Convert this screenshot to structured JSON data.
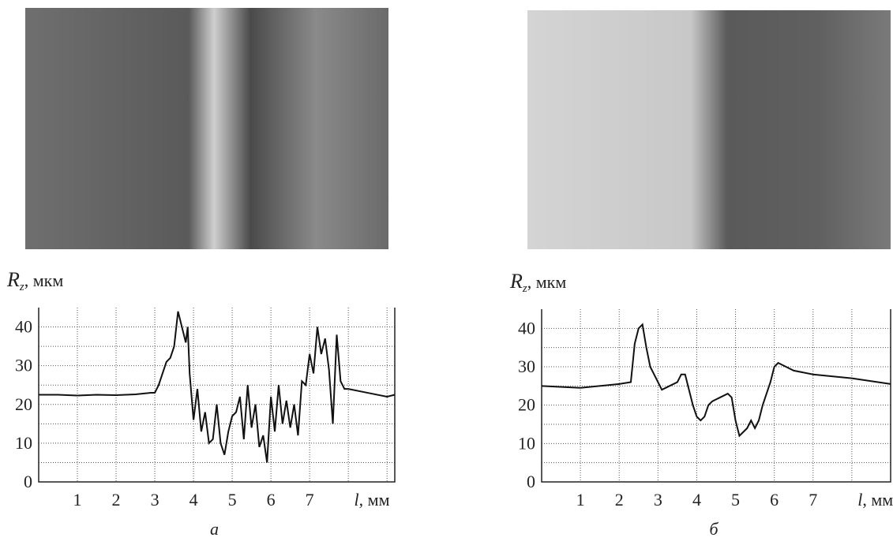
{
  "chart_data": [
    {
      "type": "line",
      "panel_label": "а",
      "ylabel_main": "R",
      "ylabel_sub": "z",
      "ylabel_rest": ", мкм",
      "xlabel_main": "l",
      "xlabel_rest": ", мм",
      "xlim": [
        0,
        9.2
      ],
      "ylim": [
        0,
        45
      ],
      "xticks": [
        1,
        2,
        3,
        4,
        5,
        6,
        7
      ],
      "yticks": [
        0,
        10,
        20,
        30,
        40
      ],
      "xgrid": [
        1,
        2,
        3,
        4,
        5,
        6,
        7,
        8,
        9
      ],
      "ygrid": [
        5,
        10,
        15,
        20,
        25,
        30,
        35,
        40
      ],
      "color": "#111111",
      "x": [
        0,
        0.5,
        1,
        1.5,
        2,
        2.5,
        2.9,
        3.0,
        3.1,
        3.2,
        3.3,
        3.4,
        3.5,
        3.6,
        3.7,
        3.8,
        3.85,
        3.9,
        4.0,
        4.1,
        4.2,
        4.3,
        4.4,
        4.5,
        4.6,
        4.7,
        4.8,
        4.9,
        5.0,
        5.1,
        5.2,
        5.3,
        5.4,
        5.5,
        5.6,
        5.7,
        5.8,
        5.9,
        6.0,
        6.1,
        6.2,
        6.3,
        6.4,
        6.5,
        6.6,
        6.7,
        6.8,
        6.9,
        7.0,
        7.1,
        7.2,
        7.3,
        7.4,
        7.5,
        7.6,
        7.7,
        7.8,
        7.9,
        8.0,
        8.5,
        9.0,
        9.2
      ],
      "values": [
        22.5,
        22.5,
        22.3,
        22.5,
        22.4,
        22.6,
        23,
        23,
        25,
        28,
        31,
        32,
        35,
        44,
        40,
        36,
        40,
        28,
        16,
        24,
        13,
        18,
        10,
        11,
        20,
        10,
        7,
        13,
        17,
        18,
        22,
        11,
        25,
        14,
        20,
        9,
        12,
        5,
        22,
        13,
        25,
        15,
        21,
        14,
        20,
        12,
        26,
        25,
        33,
        28,
        40,
        33,
        37,
        29,
        15,
        38,
        26,
        24,
        24,
        23,
        22,
        22.5
      ]
    },
    {
      "type": "line",
      "panel_label": "б",
      "ylabel_main": "R",
      "ylabel_sub": "z",
      "ylabel_rest": ", мкм",
      "xlabel_main": "l",
      "xlabel_rest": ", мм",
      "xlim": [
        0,
        9
      ],
      "ylim": [
        0,
        45
      ],
      "xticks": [
        1,
        2,
        3,
        4,
        5,
        6,
        7
      ],
      "yticks": [
        0,
        10,
        20,
        30,
        40
      ],
      "xgrid": [
        1,
        2,
        3,
        4,
        5,
        6,
        7,
        8
      ],
      "ygrid": [
        5,
        10,
        15,
        20,
        25,
        30,
        35,
        40
      ],
      "color": "#111111",
      "x": [
        0,
        1,
        2,
        2.3,
        2.4,
        2.5,
        2.6,
        2.7,
        2.8,
        2.9,
        3.0,
        3.1,
        3.3,
        3.5,
        3.6,
        3.7,
        3.8,
        3.9,
        4.0,
        4.1,
        4.2,
        4.3,
        4.4,
        4.6,
        4.8,
        4.9,
        5.0,
        5.1,
        5.2,
        5.3,
        5.4,
        5.5,
        5.6,
        5.7,
        5.8,
        5.9,
        6.0,
        6.1,
        6.3,
        6.5,
        7.0,
        8.0,
        9.0
      ],
      "values": [
        25,
        24.5,
        25.5,
        26,
        36,
        40,
        41,
        35,
        30,
        28,
        26,
        24,
        25,
        26,
        28,
        28,
        24,
        20,
        17,
        16,
        17,
        20,
        21,
        22,
        23,
        22,
        16,
        12,
        13,
        14,
        16,
        14,
        16,
        20,
        23,
        26,
        30,
        31,
        30,
        29,
        28,
        27,
        25.5
      ]
    }
  ]
}
